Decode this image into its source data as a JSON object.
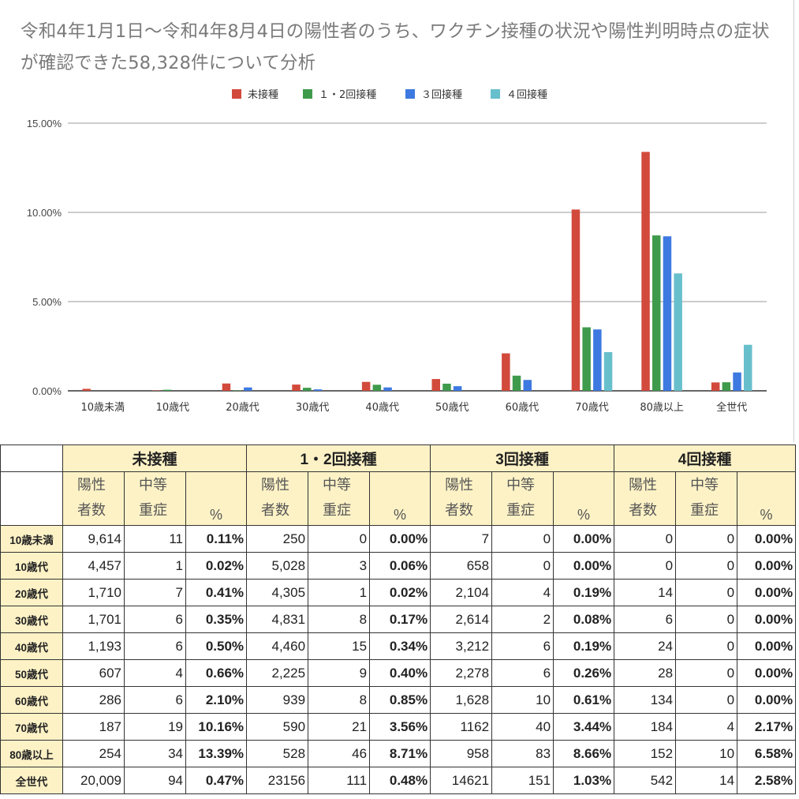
{
  "title": "令和4年1月1日〜令和4年8月4日の陽性者のうち、ワクチン接種の状況や陽性判明時点の症状が確認できた58,328件について分析",
  "colors": {
    "s0": "#d24a3c",
    "s1": "#3f9a4c",
    "s2": "#3d79e0",
    "s3": "#68bfcc"
  },
  "chart_data": {
    "type": "bar",
    "title": "令和4年1月1日〜令和4年8月4日の陽性者のうち、ワクチン接種の状況や陽性判明時点の症状が確認できた58,328件について分析",
    "categories": [
      "10歳未満",
      "10歳代",
      "20歳代",
      "30歳代",
      "40歳代",
      "50歳代",
      "60歳代",
      "70歳代",
      "80歳以上",
      "全世代"
    ],
    "series": [
      {
        "name": "未接種",
        "values": [
          0.11,
          0.02,
          0.41,
          0.35,
          0.5,
          0.66,
          2.1,
          10.16,
          13.39,
          0.47
        ]
      },
      {
        "name": "１・2回接種",
        "values": [
          0.0,
          0.06,
          0.02,
          0.17,
          0.34,
          0.4,
          0.85,
          3.56,
          8.71,
          0.48
        ]
      },
      {
        "name": "３回接種",
        "values": [
          0.0,
          0.0,
          0.19,
          0.08,
          0.19,
          0.26,
          0.61,
          3.44,
          8.66,
          1.03
        ]
      },
      {
        "name": "４回接種",
        "values": [
          0.0,
          0.0,
          0.0,
          0.0,
          0.0,
          0.0,
          0.0,
          2.17,
          6.58,
          2.58
        ]
      }
    ],
    "ylim": [
      0,
      15
    ],
    "yticks": [
      "0.00%",
      "5.00%",
      "10.00%",
      "15.00%"
    ],
    "ytick_values": [
      0,
      5,
      10,
      15
    ],
    "legend_position": "top-center",
    "grid": true
  },
  "table": {
    "groups": [
      "未接種",
      "1・2回接種",
      "3回接種",
      "4回接種"
    ],
    "sub": {
      "pos_top": "陽性",
      "pos_bottom": "者数",
      "sev_top": "中等",
      "sev_bottom": "重症",
      "pct": "%"
    },
    "rows": [
      {
        "age": "10歳未満",
        "cells": [
          "9,614",
          "11",
          "0.11%",
          "250",
          "0",
          "0.00%",
          "7",
          "0",
          "0.00%",
          "0",
          "0",
          "0.00%"
        ]
      },
      {
        "age": "10歳代",
        "cells": [
          "4,457",
          "1",
          "0.02%",
          "5,028",
          "3",
          "0.06%",
          "658",
          "0",
          "0.00%",
          "0",
          "0",
          "0.00%"
        ]
      },
      {
        "age": "20歳代",
        "cells": [
          "1,710",
          "7",
          "0.41%",
          "4,305",
          "1",
          "0.02%",
          "2,104",
          "4",
          "0.19%",
          "14",
          "0",
          "0.00%"
        ]
      },
      {
        "age": "30歳代",
        "cells": [
          "1,701",
          "6",
          "0.35%",
          "4,831",
          "8",
          "0.17%",
          "2,614",
          "2",
          "0.08%",
          "6",
          "0",
          "0.00%"
        ]
      },
      {
        "age": "40歳代",
        "cells": [
          "1,193",
          "6",
          "0.50%",
          "4,460",
          "15",
          "0.34%",
          "3,212",
          "6",
          "0.19%",
          "24",
          "0",
          "0.00%"
        ]
      },
      {
        "age": "50歳代",
        "cells": [
          "607",
          "4",
          "0.66%",
          "2,225",
          "9",
          "0.40%",
          "2,278",
          "6",
          "0.26%",
          "28",
          "0",
          "0.00%"
        ]
      },
      {
        "age": "60歳代",
        "cells": [
          "286",
          "6",
          "2.10%",
          "939",
          "8",
          "0.85%",
          "1,628",
          "10",
          "0.61%",
          "134",
          "0",
          "0.00%"
        ]
      },
      {
        "age": "70歳代",
        "cells": [
          "187",
          "19",
          "10.16%",
          "590",
          "21",
          "3.56%",
          "1162",
          "40",
          "3.44%",
          "184",
          "4",
          "2.17%"
        ]
      },
      {
        "age": "80歳以上",
        "cells": [
          "254",
          "34",
          "13.39%",
          "528",
          "46",
          "8.71%",
          "958",
          "83",
          "8.66%",
          "152",
          "10",
          "6.58%"
        ]
      },
      {
        "age": "全世代",
        "cells": [
          "20,009",
          "94",
          "0.47%",
          "23156",
          "111",
          "0.48%",
          "14621",
          "151",
          "1.03%",
          "542",
          "14",
          "2.58%"
        ]
      }
    ]
  }
}
